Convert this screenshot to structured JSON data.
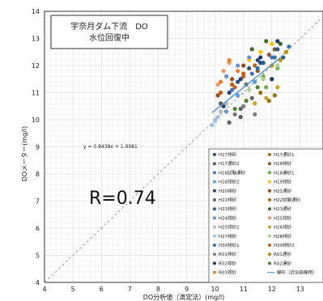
{
  "chart_data": {
    "type": "scatter",
    "title_lines": [
      "宇奈月ダム下流　DO",
      "水位回復中"
    ],
    "xlabel": "DO分析値（滴定法）(mg/l)",
    "ylabel": "DOメーター(mg/l)",
    "xlim": [
      4,
      13.8
    ],
    "ylim": [
      4,
      14
    ],
    "x_ticks": [
      4,
      5,
      6,
      7,
      8,
      9,
      10,
      11,
      12,
      13
    ],
    "y_ticks": [
      4,
      5,
      6,
      7,
      8,
      9,
      10,
      11,
      12,
      13,
      14
    ],
    "grid": true,
    "regression_equation": "y = 0.8438x + 1.9081",
    "regression": {
      "slope": 0.8438,
      "intercept": 1.9081,
      "x_range": [
        9.9,
        12.3
      ]
    },
    "r_label": "R=0.74",
    "reference_line": "1:1",
    "legend_placement": "bottom-right",
    "series": [
      {
        "name": "H17排砂",
        "color": "#2f4b7c",
        "points": [
          [
            10.8,
            11.4
          ],
          [
            11.2,
            11.9
          ],
          [
            11.6,
            12.1
          ],
          [
            10.5,
            11.0
          ]
        ]
      },
      {
        "name": "H17通砂1",
        "color": "#b5651d",
        "points": [
          [
            11.0,
            11.6
          ],
          [
            11.4,
            12.0
          ],
          [
            10.7,
            11.2
          ]
        ]
      },
      {
        "name": "H17通砂2",
        "color": "#595959",
        "points": [
          [
            10.2,
            10.6
          ],
          [
            11.1,
            11.3
          ],
          [
            10.9,
            10.1
          ]
        ]
      },
      {
        "name": "H18排砂",
        "color": "#8b5a2b",
        "points": [
          [
            11.9,
            12.4
          ],
          [
            12.1,
            12.6
          ],
          [
            11.5,
            11.8
          ]
        ]
      },
      {
        "name": "H18試験通砂",
        "color": "#4472c4",
        "points": [
          [
            10.6,
            11.1
          ],
          [
            11.3,
            11.7
          ],
          [
            12.0,
            12.3
          ]
        ]
      },
      {
        "name": "H18通砂1",
        "color": "#70ad47",
        "points": [
          [
            11.8,
            11.2
          ],
          [
            12.2,
            11.9
          ],
          [
            11.7,
            11.6
          ]
        ]
      },
      {
        "name": "H18排砂2",
        "color": "#5b9bd5",
        "points": [
          [
            10.4,
            10.3
          ],
          [
            10.8,
            10.9
          ],
          [
            11.4,
            11.4
          ]
        ]
      },
      {
        "name": "H19排砂",
        "color": "#ffc000",
        "points": [
          [
            11.6,
            12.5
          ],
          [
            12.0,
            12.8
          ],
          [
            11.2,
            12.2
          ]
        ]
      },
      {
        "name": "H20排砂",
        "color": "#264478",
        "points": [
          [
            10.3,
            10.5
          ],
          [
            10.9,
            11.5
          ],
          [
            11.5,
            12.2
          ]
        ]
      },
      {
        "name": "H21通砂",
        "color": "#9e480e",
        "points": [
          [
            10.1,
            10.9
          ],
          [
            10.6,
            11.5
          ],
          [
            11.0,
            12.0
          ]
        ]
      },
      {
        "name": "H22排砂",
        "color": "#636363",
        "points": [
          [
            10.5,
            9.9
          ],
          [
            10.9,
            10.4
          ],
          [
            11.3,
            10.8
          ]
        ]
      },
      {
        "name": "H22試験通砂",
        "color": "#997300",
        "points": [
          [
            11.9,
            10.7
          ],
          [
            12.1,
            10.9
          ],
          [
            11.6,
            11.0
          ]
        ]
      },
      {
        "name": "H23排砂",
        "color": "#255e91",
        "points": [
          [
            11.7,
            12.1
          ],
          [
            12.2,
            12.6
          ],
          [
            12.4,
            12.3
          ]
        ]
      },
      {
        "name": "H23通砂",
        "color": "#43682b",
        "points": [
          [
            11.3,
            12.6
          ],
          [
            11.8,
            12.9
          ],
          [
            12.3,
            12.8
          ]
        ]
      },
      {
        "name": "H24排砂",
        "color": "#698ed0",
        "points": [
          [
            10.4,
            11.6
          ],
          [
            10.8,
            12.0
          ],
          [
            11.2,
            12.3
          ]
        ]
      },
      {
        "name": "H25排砂",
        "color": "#f1975a",
        "points": [
          [
            10.1,
            11.3
          ],
          [
            10.3,
            11.8
          ],
          [
            10.5,
            12.1
          ]
        ]
      },
      {
        "name": "H25排砂2",
        "color": "#b7b7b7",
        "points": [
          [
            10.0,
            10.0
          ],
          [
            10.2,
            10.3
          ],
          [
            10.4,
            10.6
          ]
        ]
      },
      {
        "name": "H26排砂",
        "color": "#c9a227",
        "points": [
          [
            11.4,
            10.6
          ],
          [
            11.8,
            10.8
          ],
          [
            12.2,
            11.2
          ]
        ]
      },
      {
        "name": "H27排砂",
        "color": "#9dc3e6",
        "points": [
          [
            9.9,
            9.8
          ],
          [
            10.0,
            9.95
          ],
          [
            10.1,
            10.1
          ]
        ]
      },
      {
        "name": "H28排砂",
        "color": "#a9d18e",
        "points": [
          [
            11.2,
            11.1
          ],
          [
            11.7,
            11.5
          ],
          [
            12.2,
            12.0
          ]
        ]
      },
      {
        "name": "H30排砂1",
        "color": "#2e75b6",
        "points": [
          [
            11.5,
            11.9
          ],
          [
            12.1,
            12.3
          ],
          [
            12.6,
            12.7
          ]
        ]
      },
      {
        "name": "H30排砂2",
        "color": "#c55a11",
        "points": [
          [
            10.2,
            11.0
          ],
          [
            10.6,
            11.3
          ],
          [
            11.0,
            11.7
          ]
        ]
      },
      {
        "name": "R01排砂",
        "color": "#7b7b7b",
        "points": [
          [
            10.7,
            10.2
          ],
          [
            11.0,
            10.5
          ],
          [
            11.4,
            10.2
          ]
        ]
      },
      {
        "name": "R01通砂",
        "color": "#bf8f00",
        "points": [
          [
            12.3,
            12.2
          ],
          [
            12.5,
            12.5
          ],
          [
            12.0,
            12.0
          ]
        ]
      },
      {
        "name": "R02排砂",
        "color": "#1f3864",
        "points": [
          [
            11.6,
            12.3
          ],
          [
            12.2,
            12.9
          ],
          [
            12.0,
            11.5
          ]
        ]
      },
      {
        "name": "R02通砂",
        "color": "#548235",
        "points": [
          [
            10.7,
            10.4
          ],
          [
            11.1,
            10.7
          ],
          [
            11.5,
            11.2
          ]
        ]
      },
      {
        "name": "R03排砂",
        "color": "#ed7d31",
        "points": [
          [
            10.2,
            11.4
          ],
          [
            10.5,
            12.2
          ],
          [
            10.8,
            11.8
          ]
        ]
      }
    ],
    "legend_extra": "線形（近似曲線用）"
  }
}
